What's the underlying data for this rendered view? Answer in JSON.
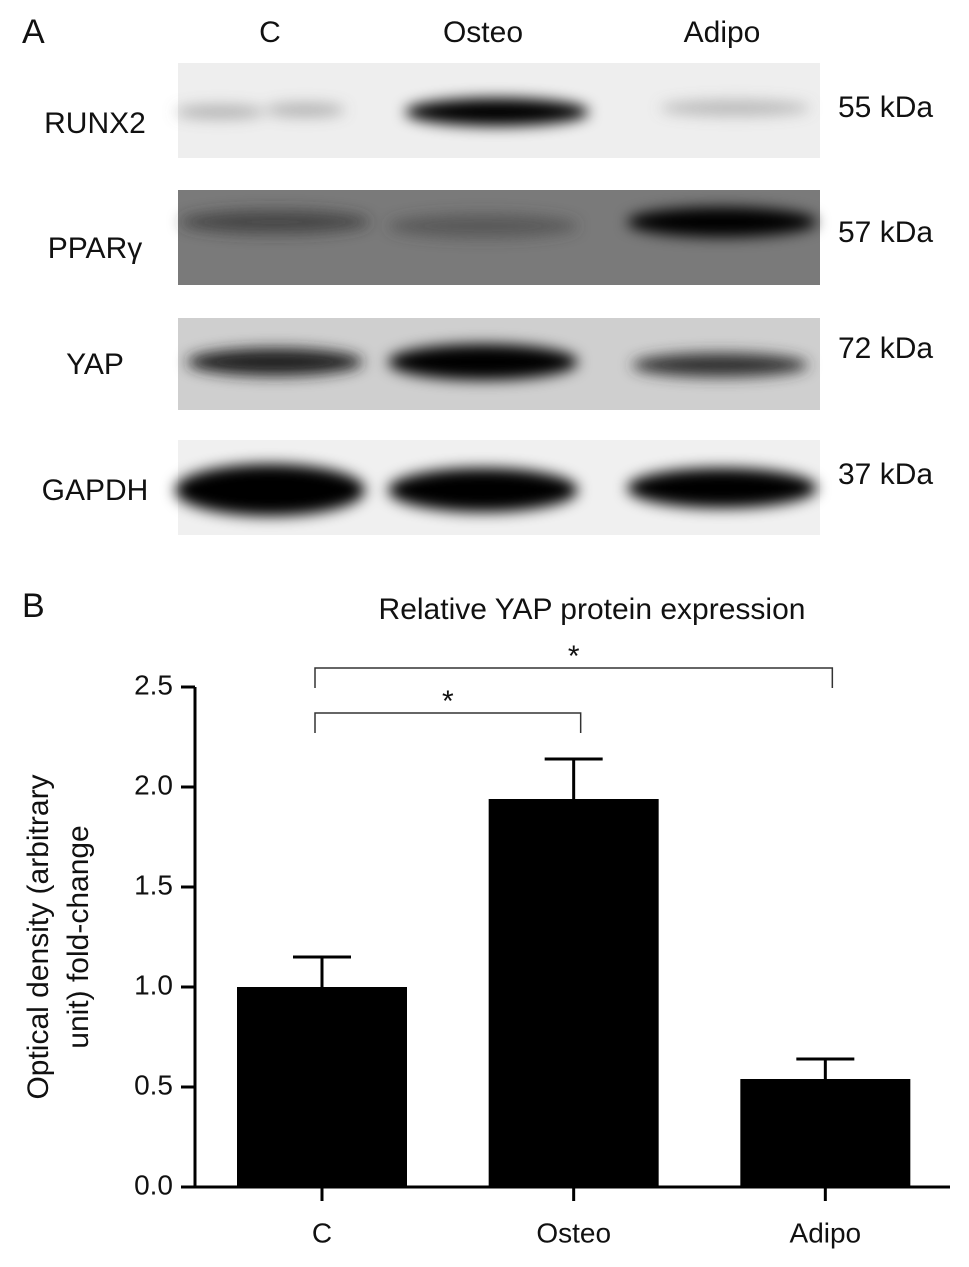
{
  "panel_labels": [
    "A",
    "B"
  ],
  "blot": {
    "lanes": [
      "C",
      "Osteo",
      "Adipo"
    ],
    "rows": [
      {
        "protein": "RUNX2",
        "size": "55 kDa"
      },
      {
        "protein": "PPARγ",
        "size": "57 kDa"
      },
      {
        "protein": "YAP",
        "size": "72 kDa"
      },
      {
        "protein": "GAPDH",
        "size": "37 kDa"
      }
    ]
  },
  "chart_data": {
    "type": "bar",
    "title": "Relative YAP protein expression",
    "ylabel": [
      "Optical density (arbitrary",
      "unit) fold-change"
    ],
    "categories": [
      "C",
      "Osteo",
      "Adipo"
    ],
    "values": [
      1.0,
      1.94,
      0.54
    ],
    "errors": [
      0.15,
      0.2,
      0.1
    ],
    "color": "#000000",
    "ylim": [
      0,
      2.5
    ],
    "yticks": [
      {
        "value": 0,
        "label": "0.0"
      },
      0.5,
      {
        "value": 1,
        "label": "1.0"
      },
      1.5,
      {
        "value": 2,
        "label": "2.0"
      },
      2.5
    ],
    "annotations": [
      {
        "text": "*",
        "between": [
          0,
          1
        ]
      },
      {
        "text": "*",
        "between": [
          0,
          2
        ]
      }
    ]
  }
}
